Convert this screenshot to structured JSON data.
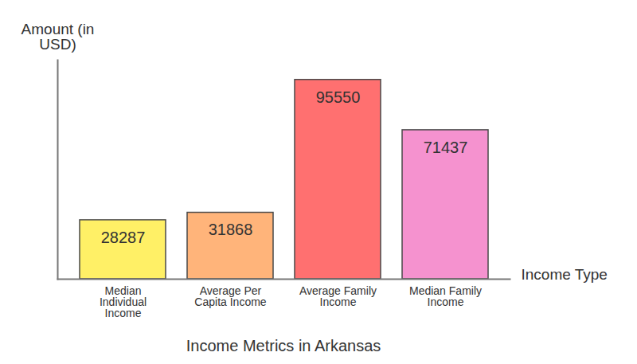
{
  "chart_data": {
    "type": "bar",
    "title": "Income Metrics in Arkansas",
    "xlabel": "Income Type",
    "ylabel": "Amount (in USD)",
    "categories": [
      "Median Individual Income",
      "Average Per Capita Income",
      "Average Family Income",
      "Median Family Income"
    ],
    "values": [
      28287,
      31868,
      95550,
      71437
    ],
    "colors": [
      "#fff066",
      "#ffb47a",
      "#ff7070",
      "#f592cf"
    ],
    "ylim": [
      0,
      105000
    ],
    "yticks": [],
    "grid": false,
    "tick_labels": "x",
    "data_labels": true
  }
}
